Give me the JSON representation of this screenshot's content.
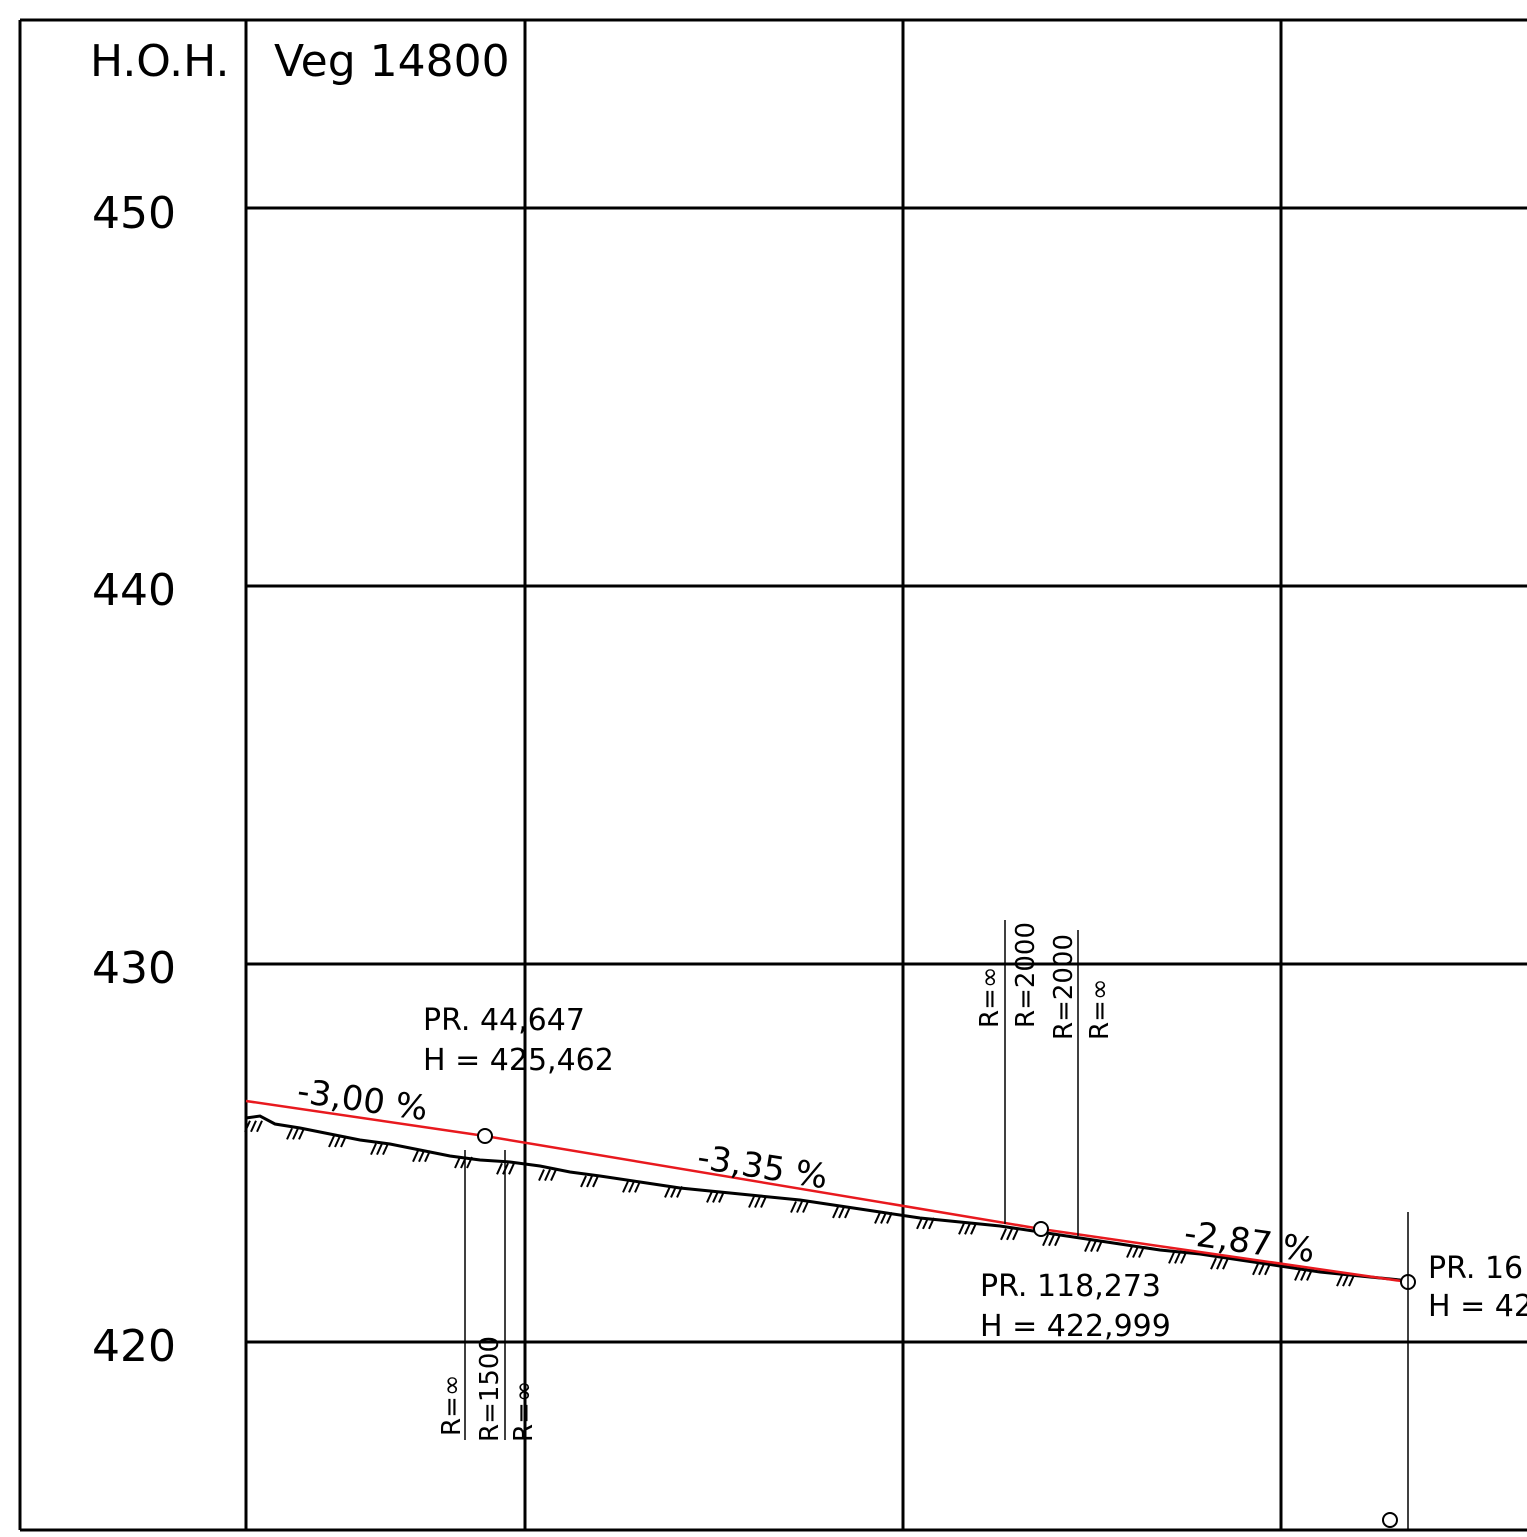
{
  "header": {
    "datum_label": "H.O.H.",
    "road_label": "Veg 14800"
  },
  "elevation_axis": {
    "ticks": [
      "450",
      "440",
      "430",
      "420"
    ]
  },
  "grades": {
    "g1": "-3,00 %",
    "g2": "-3,35 %",
    "g3": "-2,87 %"
  },
  "vertical_points": {
    "p1": {
      "station": "PR. 44,647",
      "height": "H = 425,462"
    },
    "p2": {
      "station": "PR. 118,273",
      "height": "H = 422,999"
    },
    "p3": {
      "station": "PR. 16",
      "height": "H = 42"
    }
  },
  "curve_radii": {
    "c1": [
      "R=∞",
      "R=1500",
      "R=∞"
    ],
    "c2": [
      "R=∞",
      "R=2000",
      "R=2000",
      "R=∞"
    ]
  },
  "colors": {
    "design_line": "#e8191e",
    "frame": "#000000"
  }
}
